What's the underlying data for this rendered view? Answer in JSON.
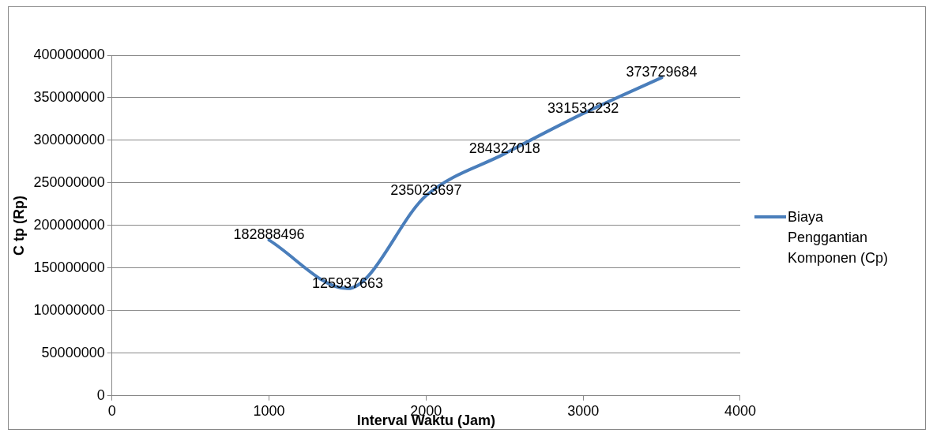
{
  "chart_data": {
    "type": "line",
    "xlabel": "Interval Waktu (Jam)",
    "ylabel": "C tp (Rp)",
    "x": [
      1000,
      1500,
      2000,
      2500,
      3000,
      3500
    ],
    "series": [
      {
        "name": "Biaya Penggantian Komponen (Cp)",
        "color": "#4a7ebb",
        "values": [
          182888496,
          125937663,
          235023697,
          284327018,
          331532232,
          373729684
        ]
      }
    ],
    "xlim": [
      0,
      4000
    ],
    "xticks": [
      0,
      1000,
      2000,
      3000,
      4000
    ],
    "ylim": [
      0,
      400000000
    ],
    "yticks": [
      0,
      50000000,
      100000000,
      150000000,
      200000000,
      250000000,
      300000000,
      350000000,
      400000000
    ],
    "grid": "y",
    "legend": "right",
    "data_labels": true,
    "marker": "none"
  }
}
